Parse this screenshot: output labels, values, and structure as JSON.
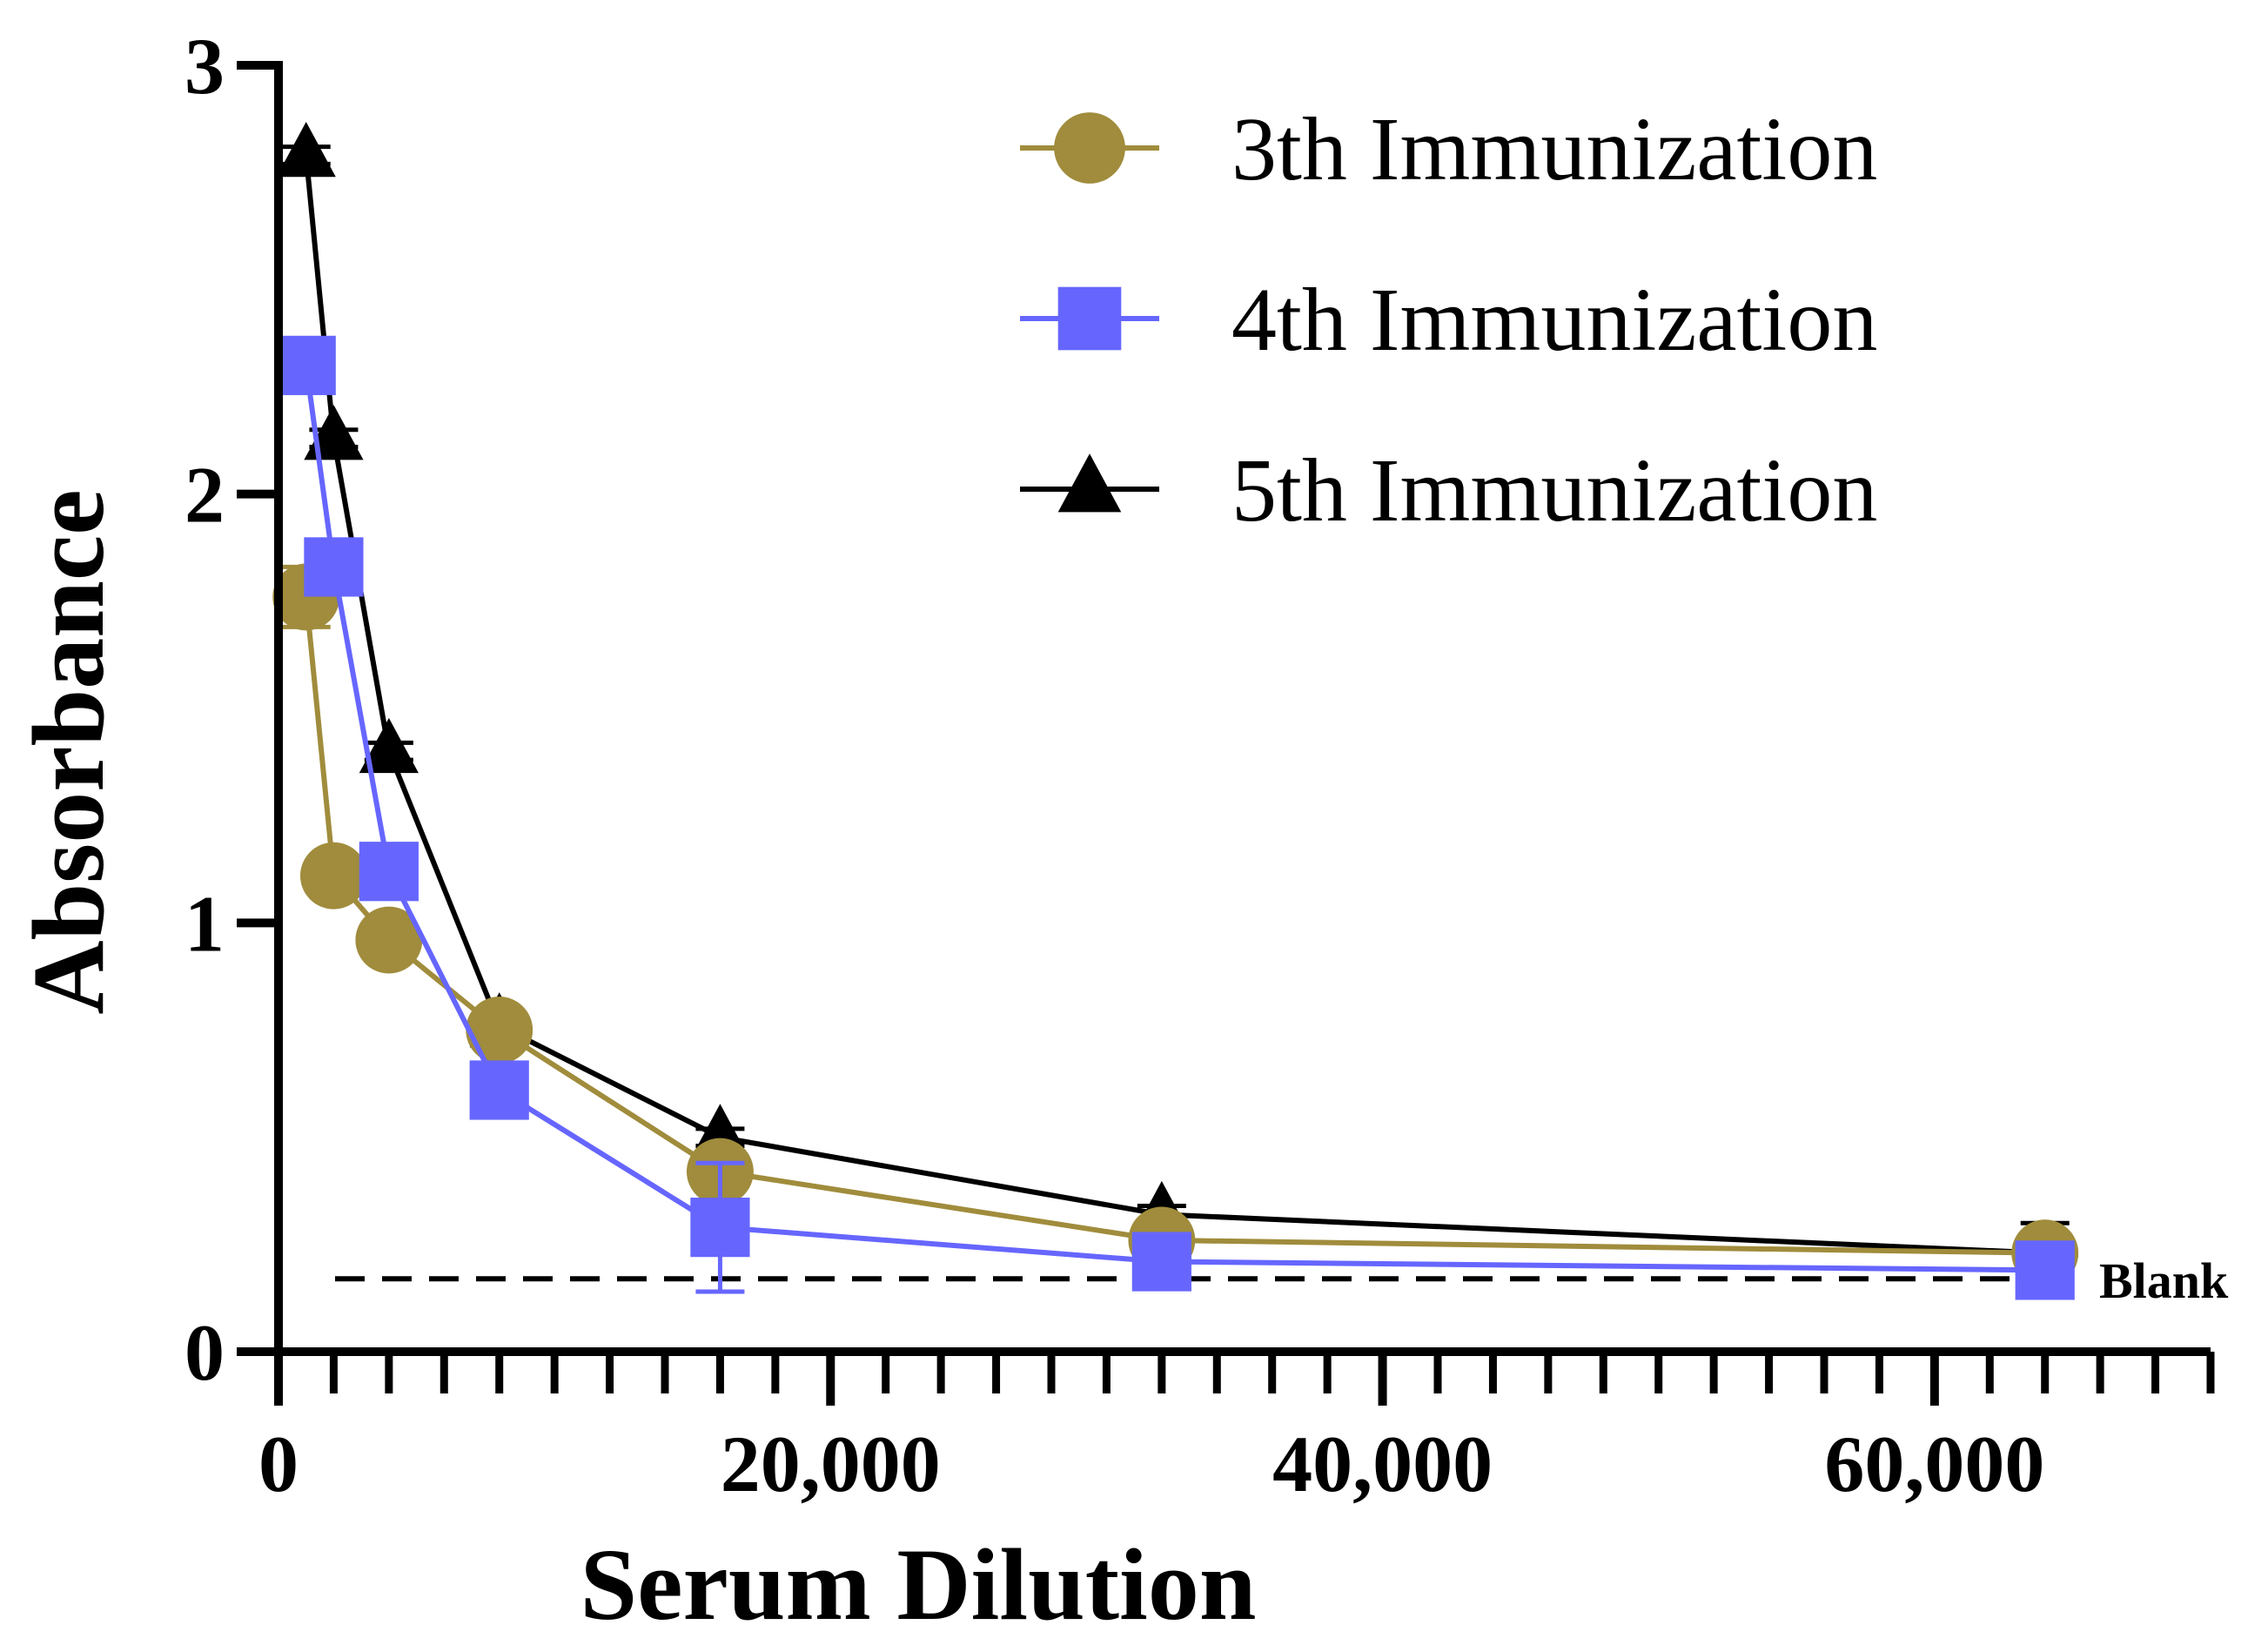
{
  "chart_data": {
    "type": "line",
    "title": "",
    "xlabel": "Serum Dilution",
    "ylabel": "Absorbance",
    "xlim": [
      0,
      70000
    ],
    "ylim": [
      0,
      3
    ],
    "x_ticks": [
      {
        "value": 0,
        "label": "0"
      },
      {
        "value": 20000,
        "label": "20,000"
      },
      {
        "value": 40000,
        "label": "40,000"
      },
      {
        "value": 60000,
        "label": "60,000"
      }
    ],
    "x_minor_step": 2000,
    "y_ticks": [
      {
        "value": 0,
        "label": "0"
      },
      {
        "value": 1,
        "label": "1"
      },
      {
        "value": 2,
        "label": "2"
      },
      {
        "value": 3,
        "label": "3"
      }
    ],
    "x": [
      1000,
      2000,
      4000,
      8000,
      16000,
      32000,
      64000
    ],
    "series": [
      {
        "name": "3th Immunization",
        "color": "#a08c3c",
        "marker": "circle",
        "values": [
          1.76,
          1.11,
          0.96,
          0.75,
          0.42,
          0.26,
          0.23
        ],
        "errors": [
          0.07,
          0.02,
          0.02,
          0.02,
          0.03,
          0.02,
          0.02
        ]
      },
      {
        "name": "4th Immunization",
        "color": "#6666ff",
        "marker": "square",
        "values": [
          2.3,
          1.83,
          1.12,
          0.61,
          0.29,
          0.21,
          0.19
        ],
        "errors": [
          0.03,
          0.03,
          0.03,
          0.02,
          0.15,
          0.02,
          0.02
        ]
      },
      {
        "name": "5th Immunization",
        "color": "#000000",
        "marker": "triangle",
        "values": [
          2.79,
          2.13,
          1.4,
          0.76,
          0.5,
          0.32,
          0.23
        ],
        "errors": [
          0.02,
          0.02,
          0.02,
          0.02,
          0.02,
          0.02,
          0.07
        ]
      }
    ],
    "reference_line": {
      "label": "Blank",
      "y": 0.17,
      "style": "dashed",
      "color": "#000000"
    },
    "legend": {
      "position": "top-right"
    }
  }
}
